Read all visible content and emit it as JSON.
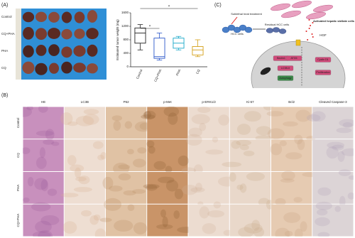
{
  "panel_labels": [
    "(A)",
    "(B)",
    "(C)"
  ],
  "photo_labels": [
    "Control",
    "CQ+PHA",
    "PHA",
    "CQ"
  ],
  "chart_data": {
    "type": "box",
    "ylabel": "Estimated tumor weight (mg)",
    "categories": [
      "Control",
      "CQ+PHA",
      "PHA",
      "CQ"
    ],
    "boxes": [
      {
        "min": 500,
        "q1": 700,
        "median": 1000,
        "q3": 1150,
        "max": 1250,
        "color": "#222222"
      },
      {
        "min": 200,
        "q1": 250,
        "median": 300,
        "q3": 850,
        "max": 1000,
        "color": "#2b57c9"
      },
      {
        "min": 500,
        "q1": 550,
        "median": 700,
        "q3": 850,
        "max": 900,
        "color": "#18a8c8"
      },
      {
        "min": 300,
        "q1": 350,
        "median": 500,
        "q3": 600,
        "max": 800,
        "color": "#d4a017"
      }
    ],
    "ylim": [
      0,
      1600
    ],
    "yticks": [
      0,
      400,
      800,
      1200,
      1600
    ],
    "annotations": [
      "*",
      "*"
    ]
  },
  "diagram": {
    "heat": "Sublethal heat treatment",
    "hcc": "HCC cells",
    "residual": "Residual HCC cells",
    "stellate": "Activated hepatic stellate cells",
    "hgf": "HGF",
    "beclin": "Beclin1",
    "atg5": "ATG5",
    "lc3": "LC3B-II",
    "autophagy": "Autophagy",
    "cyclin": "Cyclin D1",
    "proliferation": "Proliferation"
  },
  "histology": {
    "columns": [
      "HE",
      "LC3B",
      "P62",
      "p-Met",
      "p-ERK1/2",
      "Ki-67",
      "Bcl2",
      "Cleaved Caspase-3"
    ],
    "rows": [
      "Control",
      "CQ",
      "PHA",
      "CQ+PHA"
    ]
  }
}
